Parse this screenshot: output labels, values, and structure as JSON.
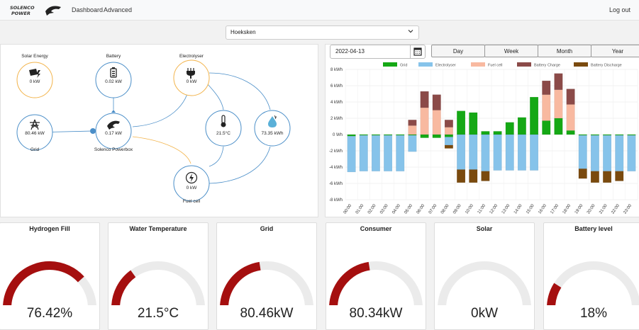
{
  "header": {
    "brand": "SOLENCO POWER",
    "nav": [
      "Dashboard",
      "Advanced"
    ],
    "logout": "Log out"
  },
  "site_selector": {
    "selected": "Hoeksken"
  },
  "flow": {
    "nodes": [
      {
        "id": "solar",
        "label": "Solar Energy",
        "value": "0 kW",
        "icon": "solar-panel-icon"
      },
      {
        "id": "battery",
        "label": "Battery",
        "value": "0.02 kW",
        "icon": "battery-icon"
      },
      {
        "id": "electrolyser",
        "label": "Electrolyser",
        "value": "0 kW",
        "icon": "plug-icon"
      },
      {
        "id": "grid",
        "label": "Grid",
        "value": "80.46 kW",
        "icon": "power-tower-icon"
      },
      {
        "id": "powerbox",
        "label": "Solenco Powerbox",
        "value": "0.17 kW",
        "icon": "panther-icon"
      },
      {
        "id": "temperature",
        "label": "",
        "value": "21.5°C",
        "icon": "thermometer-icon"
      },
      {
        "id": "hydrogen",
        "label": "",
        "value": "73.35 kWh",
        "icon": "water-drop-icon"
      },
      {
        "id": "fuelcell",
        "label": "Fuel cell",
        "value": "0 kW",
        "icon": "lightning-icon"
      }
    ]
  },
  "controls": {
    "date": "2022-04-13",
    "ranges": [
      "Day",
      "Week",
      "Month",
      "Year"
    ]
  },
  "chart_data": {
    "type": "bar",
    "stacked": true,
    "ylabel": "",
    "ylim": [
      -8,
      8
    ],
    "y_ticks": [
      "8 kWh",
      "6 kWh",
      "4 kWh",
      "2 kWh",
      "0 Wh",
      "-2 kWh",
      "-4 kWh",
      "-6 kWh",
      "-8 kWh"
    ],
    "legend_position": "top",
    "grid": true,
    "categories": [
      "00:00",
      "01:00",
      "02:00",
      "03:00",
      "04:00",
      "05:00",
      "06:00",
      "07:00",
      "08:00",
      "09:00",
      "10:00",
      "11:00",
      "12:00",
      "13:00",
      "14:00",
      "15:00",
      "16:00",
      "17:00",
      "18:00",
      "19:00",
      "20:00",
      "21:00",
      "22:00",
      "23:00"
    ],
    "series": [
      {
        "name": "Grid",
        "color": "#15a815",
        "values": [
          -0.2,
          -0.1,
          -0.1,
          -0.1,
          -0.1,
          -0.1,
          -0.4,
          -0.4,
          -0.3,
          2.9,
          2.7,
          0.4,
          0.4,
          1.5,
          2.1,
          4.6,
          1.7,
          2.0,
          0.5,
          -0.1,
          -0.1,
          -0.1,
          -0.1,
          -0.1
        ]
      },
      {
        "name": "Electrolyser",
        "color": "#86c3ea",
        "values": [
          -4.4,
          -4.4,
          -4.4,
          -4.4,
          -4.4,
          -2.0,
          0,
          0,
          -1.0,
          -4.3,
          -4.3,
          -4.5,
          -4.4,
          -4.4,
          -4.4,
          -4.4,
          0,
          0,
          0,
          -4.1,
          -4.4,
          -4.4,
          -4.4,
          -4.4
        ]
      },
      {
        "name": "Fuel cell",
        "color": "#f8b9a0",
        "values": [
          0,
          0,
          0,
          0,
          0,
          1.1,
          3.3,
          3.0,
          0.9,
          0,
          0,
          0,
          0,
          0,
          0,
          0,
          3.2,
          3.5,
          3.2,
          0,
          0,
          0,
          0,
          0
        ]
      },
      {
        "name": "Battery Charge",
        "color": "#8b4a48",
        "values": [
          0,
          0,
          0,
          0,
          0,
          0.7,
          2.0,
          1.9,
          0.9,
          0,
          0,
          0,
          0,
          0,
          0,
          0,
          1.7,
          2.0,
          1.9,
          0,
          0,
          0,
          0,
          0
        ]
      },
      {
        "name": "Battery Discharge",
        "color": "#7a4a0e",
        "values": [
          0,
          0,
          0,
          0,
          0,
          0,
          0,
          0,
          -0.4,
          -1.6,
          -1.6,
          -1.2,
          0,
          0,
          0,
          0,
          0,
          0,
          0,
          -1.2,
          -1.4,
          -1.4,
          -1.2,
          0
        ]
      }
    ]
  },
  "gauges": [
    {
      "title": "Hydrogen Fill",
      "display": "76.42%",
      "fraction": 0.7642
    },
    {
      "title": "Water Temperature",
      "display": "21.5°C",
      "fraction": 0.3
    },
    {
      "title": "Grid",
      "display": "80.46kW",
      "fraction": 0.45
    },
    {
      "title": "Consumer",
      "display": "80.34kW",
      "fraction": 0.45
    },
    {
      "title": "Solar",
      "display": "0kW",
      "fraction": 0
    },
    {
      "title": "Battery level",
      "display": "18%",
      "fraction": 0.18
    }
  ],
  "colors": {
    "gauge_fill": "#a50f0f",
    "gauge_track": "#ebebeb",
    "solar_line": "#f2b34a",
    "blue_line": "#4a8ec8"
  }
}
